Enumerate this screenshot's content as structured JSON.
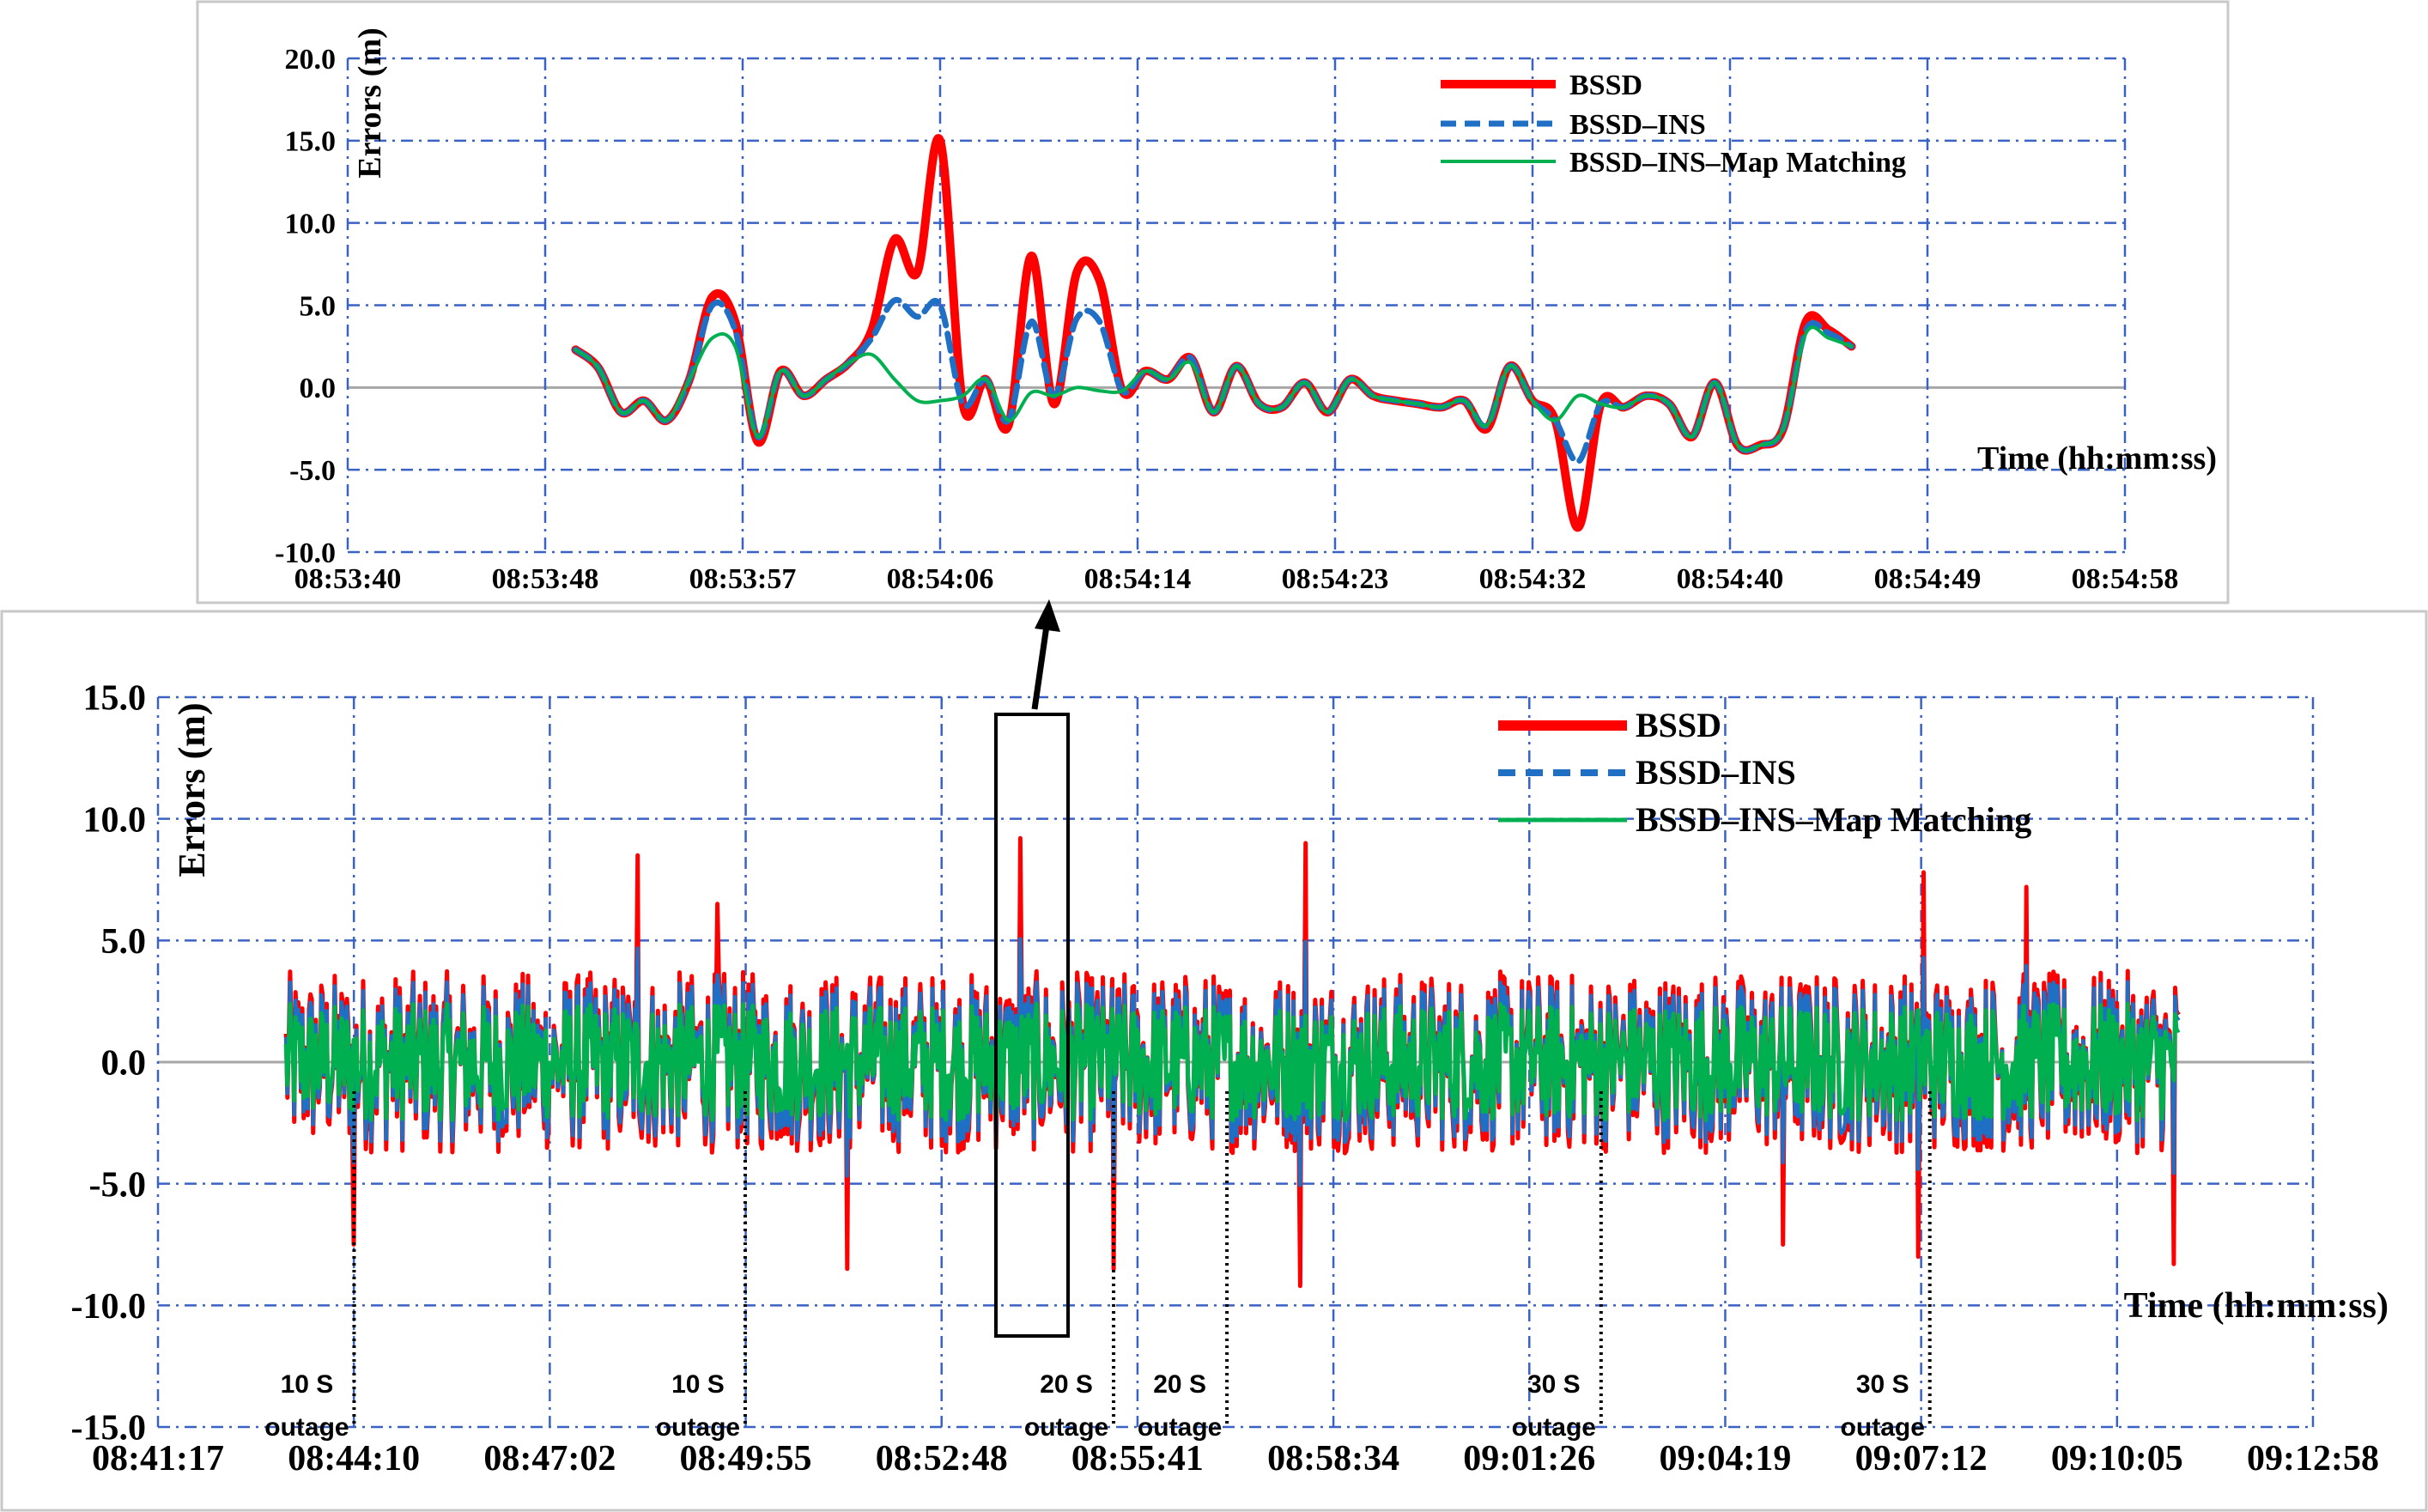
{
  "chart_data": [
    {
      "type": "line",
      "role": "zoom-inset",
      "ylabel": "Errors (m)",
      "xlabel": "Time (hh:mm:ss)",
      "ylim": [
        -10.0,
        20.0
      ],
      "yticks": [
        "20.0",
        "15.0",
        "10.0",
        "5.0",
        "0.0",
        "-5.0",
        "-10.0"
      ],
      "xlim": [
        "08:53:40",
        "08:54:58"
      ],
      "xticks": [
        "08:53:40",
        "08:53:48",
        "08:53:57",
        "08:54:06",
        "08:54:14",
        "08:54:23",
        "08:54:32",
        "08:54:40",
        "08:54:49",
        "08:54:58"
      ],
      "grid": true,
      "legend_position": "top-right",
      "series": [
        {
          "name": "BSSD",
          "color": "#ff0000",
          "style": "solid-thick",
          "x": [
            "08:53:50",
            "08:53:51",
            "08:53:52",
            "08:53:53",
            "08:53:54",
            "08:53:55",
            "08:53:56",
            "08:53:57",
            "08:53:58",
            "08:53:59",
            "08:54:00",
            "08:54:01",
            "08:54:02",
            "08:54:03",
            "08:54:04",
            "08:54:05",
            "08:54:06",
            "08:54:07",
            "08:54:08",
            "08:54:09",
            "08:54:10",
            "08:54:11",
            "08:54:12",
            "08:54:13",
            "08:54:14",
            "08:54:15",
            "08:54:16",
            "08:54:17",
            "08:54:18",
            "08:54:19",
            "08:54:20",
            "08:54:21",
            "08:54:22",
            "08:54:23",
            "08:54:24",
            "08:54:25",
            "08:54:26",
            "08:54:27",
            "08:54:28",
            "08:54:29",
            "08:54:30",
            "08:54:31",
            "08:54:32",
            "08:54:33",
            "08:54:34",
            "08:54:35",
            "08:54:36",
            "08:54:37",
            "08:54:38",
            "08:54:39",
            "08:54:40",
            "08:54:41",
            "08:54:42",
            "08:54:43",
            "08:54:44",
            "08:54:45",
            "08:54:46",
            "08:54:47",
            "08:54:48",
            "08:54:49",
            "08:54:50"
          ],
          "values": [
            2.3,
            1.2,
            -1.5,
            -0.8,
            -2.0,
            0.5,
            5.5,
            4.0,
            -3.3,
            1.0,
            -0.5,
            0.5,
            1.5,
            3.5,
            9.0,
            7.0,
            15.0,
            -1.0,
            0.5,
            -2.3,
            8.0,
            -1.0,
            7.0,
            6.5,
            -0.2,
            1.0,
            0.5,
            1.8,
            -1.5,
            1.3,
            -1.0,
            -1.2,
            0.3,
            -1.5,
            0.5,
            -0.5,
            -0.8,
            -1.0,
            -1.2,
            -0.8,
            -2.5,
            1.3,
            -0.8,
            -2.0,
            -8.5,
            -1.0,
            -1.2,
            -0.5,
            -1.0,
            -3.0,
            0.3,
            -3.5,
            -3.5,
            -2.5,
            4.0,
            3.5,
            2.5,
            null,
            null,
            null,
            null
          ]
        },
        {
          "name": "BSSD–INS",
          "color": "#1f6fc4",
          "style": "dashed",
          "x": [
            "08:53:50",
            "08:53:51",
            "08:53:52",
            "08:53:53",
            "08:53:54",
            "08:53:55",
            "08:53:56",
            "08:53:57",
            "08:53:58",
            "08:53:59",
            "08:54:00",
            "08:54:01",
            "08:54:02",
            "08:54:03",
            "08:54:04",
            "08:54:05",
            "08:54:06",
            "08:54:07",
            "08:54:08",
            "08:54:09",
            "08:54:10",
            "08:54:11",
            "08:54:12",
            "08:54:13",
            "08:54:14",
            "08:54:15",
            "08:54:16",
            "08:54:17",
            "08:54:18",
            "08:54:19",
            "08:54:20",
            "08:54:21",
            "08:54:22",
            "08:54:23",
            "08:54:24",
            "08:54:25",
            "08:54:26",
            "08:54:27",
            "08:54:28",
            "08:54:29",
            "08:54:30",
            "08:54:31",
            "08:54:32",
            "08:54:33",
            "08:54:34",
            "08:54:35",
            "08:54:36",
            "08:54:37",
            "08:54:38",
            "08:54:39",
            "08:54:40",
            "08:54:41",
            "08:54:42",
            "08:54:43",
            "08:54:44",
            "08:54:45",
            "08:54:46",
            "08:54:47",
            "08:54:48",
            "08:54:49",
            "08:54:50"
          ],
          "values": [
            2.3,
            1.2,
            -1.5,
            -0.8,
            -2.0,
            0.5,
            5.0,
            3.5,
            -3.0,
            1.0,
            -0.5,
            0.5,
            1.5,
            3.0,
            5.3,
            4.3,
            5.0,
            -1.0,
            0.5,
            -2.0,
            4.0,
            -0.5,
            4.2,
            4.0,
            -0.2,
            1.0,
            0.5,
            1.8,
            -1.5,
            1.3,
            -1.0,
            -1.2,
            0.3,
            -1.5,
            0.5,
            -0.5,
            -0.8,
            -1.0,
            -1.2,
            -0.8,
            -2.3,
            1.3,
            -0.8,
            -2.0,
            -4.5,
            -1.0,
            -1.2,
            -0.5,
            -1.0,
            -3.0,
            0.3,
            -3.5,
            -3.5,
            -2.5,
            3.5,
            3.3,
            2.5,
            null,
            null,
            null,
            null
          ]
        },
        {
          "name": "BSSD–INS–Map Matching",
          "color": "#00b050",
          "style": "solid-thin",
          "x": [
            "08:53:50",
            "08:53:51",
            "08:53:52",
            "08:53:53",
            "08:53:54",
            "08:53:55",
            "08:53:56",
            "08:53:57",
            "08:53:58",
            "08:53:59",
            "08:54:00",
            "08:54:01",
            "08:54:02",
            "08:54:03",
            "08:54:04",
            "08:54:05",
            "08:54:06",
            "08:54:07",
            "08:54:08",
            "08:54:09",
            "08:54:10",
            "08:54:11",
            "08:54:12",
            "08:54:13",
            "08:54:14",
            "08:54:15",
            "08:54:16",
            "08:54:17",
            "08:54:18",
            "08:54:19",
            "08:54:20",
            "08:54:21",
            "08:54:22",
            "08:54:23",
            "08:54:24",
            "08:54:25",
            "08:54:26",
            "08:54:27",
            "08:54:28",
            "08:54:29",
            "08:54:30",
            "08:54:31",
            "08:54:32",
            "08:54:33",
            "08:54:34",
            "08:54:35",
            "08:54:36",
            "08:54:37",
            "08:54:38",
            "08:54:39",
            "08:54:40",
            "08:54:41",
            "08:54:42",
            "08:54:43",
            "08:54:44",
            "08:54:45",
            "08:54:46",
            "08:54:47",
            "08:54:48",
            "08:54:49",
            "08:54:50"
          ],
          "values": [
            2.3,
            1.2,
            -1.5,
            -0.8,
            -2.0,
            0.5,
            3.0,
            2.5,
            -3.0,
            1.0,
            -0.5,
            0.5,
            1.5,
            2.0,
            0.5,
            -0.8,
            -0.8,
            -0.5,
            0.5,
            -2.0,
            -0.3,
            -0.5,
            0.0,
            -0.2,
            -0.2,
            1.0,
            0.5,
            1.5,
            -1.5,
            1.3,
            -1.0,
            -1.2,
            0.3,
            -1.5,
            0.5,
            -0.5,
            -0.8,
            -1.0,
            -1.2,
            -0.8,
            -2.3,
            1.3,
            -0.8,
            -2.0,
            -0.5,
            -1.0,
            -1.2,
            -0.5,
            -1.0,
            -3.0,
            0.3,
            -3.5,
            -3.5,
            -2.5,
            3.3,
            3.0,
            2.5,
            null,
            null,
            null,
            null
          ]
        }
      ]
    },
    {
      "type": "line",
      "role": "full-trajectory",
      "ylabel": "Errors (m)",
      "xlabel": "Time (hh:mm:ss)",
      "ylim": [
        -15.0,
        15.0
      ],
      "yticks": [
        "15.0",
        "10.0",
        "5.0",
        "0.0",
        "-5.0",
        "-10.0",
        "-15.0"
      ],
      "xlim": [
        "08:41:17",
        "09:12:58"
      ],
      "xticks": [
        "08:41:17",
        "08:44:10",
        "08:47:02",
        "08:49:55",
        "08:52:48",
        "08:55:41",
        "08:58:34",
        "09:01:26",
        "09:04:19",
        "09:07:12",
        "09:10:05",
        "09:12:58"
      ],
      "grid": true,
      "legend_position": "top-right",
      "series_names": [
        "BSSD",
        "BSSD–INS",
        "BSSD–INS–Map Matching"
      ],
      "series_colors": [
        "#ff0000",
        "#1f6fc4",
        "#00b050"
      ],
      "peaks": [
        {
          "series": "BSSD",
          "x": "08:48:20",
          "y": 8.5
        },
        {
          "series": "BSSD",
          "x": "08:49:30",
          "y": 6.5
        },
        {
          "series": "BSSD",
          "x": "08:53:58",
          "y": 9.2
        },
        {
          "series": "BSSD",
          "x": "08:58:10",
          "y": 9.0
        },
        {
          "series": "BSSD",
          "x": "09:07:15",
          "y": 7.8
        },
        {
          "series": "BSSD",
          "x": "09:08:45",
          "y": 7.2
        },
        {
          "series": "BSSD",
          "x": "08:44:10",
          "y": -7.5
        },
        {
          "series": "BSSD",
          "x": "08:51:25",
          "y": -8.5
        },
        {
          "series": "BSSD",
          "x": "08:55:20",
          "y": -8.5
        },
        {
          "series": "BSSD",
          "x": "08:58:05",
          "y": -9.2
        },
        {
          "series": "BSSD",
          "x": "09:05:10",
          "y": -7.5
        },
        {
          "series": "BSSD",
          "x": "09:07:10",
          "y": -8.0
        },
        {
          "series": "BSSD",
          "x": "09:10:55",
          "y": -8.3
        }
      ],
      "outages": [
        {
          "duration": "10 S",
          "label": "outage",
          "x": "08:44:10"
        },
        {
          "duration": "10 S",
          "label": "outage",
          "x": "08:49:55"
        },
        {
          "duration": "20 S",
          "label": "outage",
          "x": "08:55:20"
        },
        {
          "duration": "20 S",
          "label": "outage",
          "x": "08:57:00"
        },
        {
          "duration": "30 S",
          "label": "outage",
          "x": "09:02:30"
        },
        {
          "duration": "30 S",
          "label": "outage",
          "x": "09:07:20"
        }
      ]
    }
  ]
}
